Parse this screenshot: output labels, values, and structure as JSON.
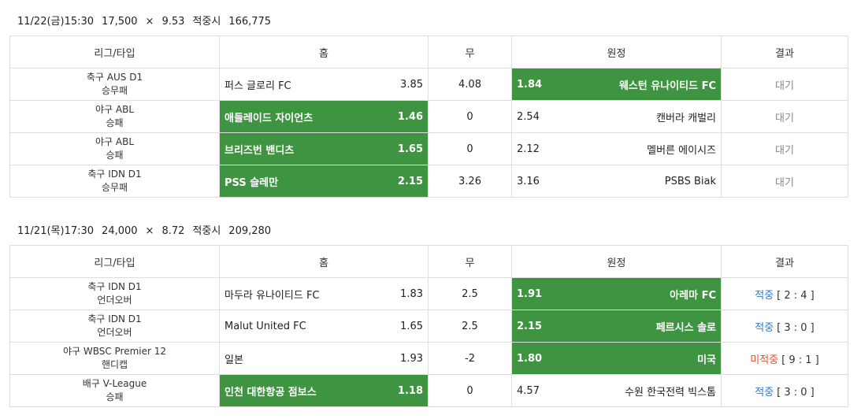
{
  "headers": {
    "league": "리그/타입",
    "home": "홈",
    "draw": "무",
    "away": "원정",
    "result": "결과"
  },
  "blocks": [
    {
      "summary": {
        "date": "11/22(금)15:30",
        "amount": "17,500",
        "times": "×",
        "odds": "9.53",
        "payout_label": "적중시",
        "payout": "166,775"
      },
      "rows": [
        {
          "league": "축구 AUS D1",
          "type": "승무패",
          "home_team": "퍼스 글로리 FC",
          "home_odds": "3.85",
          "draw": "4.08",
          "away_odds": "1.84",
          "away_team": "웨스턴 유나이티드 FC",
          "selected": "away",
          "result": "대기",
          "score": ""
        },
        {
          "league": "야구 ABL",
          "type": "승패",
          "home_team": "애들레이드 자이언츠",
          "home_odds": "1.46",
          "draw": "0",
          "away_odds": "2.54",
          "away_team": "캔버라 캐벌리",
          "selected": "home",
          "result": "대기",
          "score": ""
        },
        {
          "league": "야구 ABL",
          "type": "승패",
          "home_team": "브리즈번 밴디츠",
          "home_odds": "1.65",
          "draw": "0",
          "away_odds": "2.12",
          "away_team": "멜버른 에이시즈",
          "selected": "home",
          "result": "대기",
          "score": ""
        },
        {
          "league": "축구 IDN D1",
          "type": "승무패",
          "home_team": "PSS 슬레만",
          "home_odds": "2.15",
          "draw": "3.26",
          "away_odds": "3.16",
          "away_team": "PSBS Biak",
          "selected": "home",
          "result": "대기",
          "score": ""
        }
      ]
    },
    {
      "summary": {
        "date": "11/21(목)17:30",
        "amount": "24,000",
        "times": "×",
        "odds": "8.72",
        "payout_label": "적중시",
        "payout": "209,280"
      },
      "rows": [
        {
          "league": "축구 IDN D1",
          "type": "언더오버",
          "home_team": "마두라 유나이티드 FC",
          "home_odds": "1.83",
          "draw": "2.5",
          "away_odds": "1.91",
          "away_team": "아레마 FC",
          "selected": "away",
          "result": "적중",
          "score": "[ 2 : 4 ]"
        },
        {
          "league": "축구 IDN D1",
          "type": "언더오버",
          "home_team": "Malut United FC",
          "home_odds": "1.65",
          "draw": "2.5",
          "away_odds": "2.15",
          "away_team": "페르시스 솔로",
          "selected": "away",
          "result": "적중",
          "score": "[ 3 : 0 ]"
        },
        {
          "league": "야구 WBSC Premier 12",
          "type": "핸디캡",
          "home_team": "일본",
          "home_odds": "1.93",
          "draw": "-2",
          "away_odds": "1.80",
          "away_team": "미국",
          "selected": "away",
          "result": "미적중",
          "score": "[ 9 : 1 ]"
        },
        {
          "league": "배구 V-League",
          "type": "승패",
          "home_team": "인천 대한항공 점보스",
          "home_odds": "1.18",
          "draw": "0",
          "away_odds": "4.57",
          "away_team": "수원 한국전력 빅스톰",
          "selected": "home",
          "result": "적중",
          "score": "[ 3 : 0 ]"
        }
      ]
    }
  ]
}
